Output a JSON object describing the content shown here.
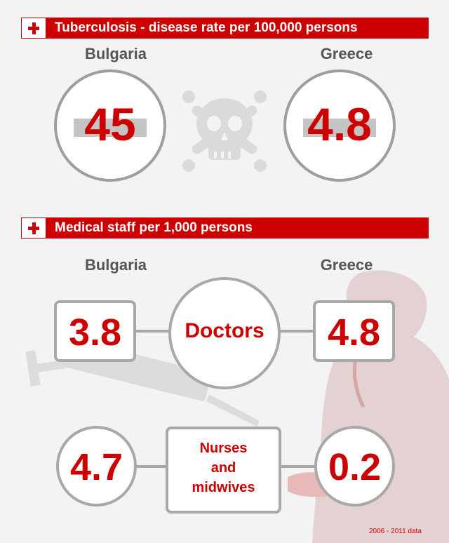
{
  "tuberculosis": {
    "title": "Tuberculosis - disease rate per 100,000 persons",
    "bulgaria_label": "Bulgaria",
    "greece_label": "Greece",
    "bulgaria_value": "45",
    "greece_value": "4.8"
  },
  "medical_staff": {
    "title": "Medical staff per 1,000 persons",
    "bulgaria_label": "Bulgaria",
    "greece_label": "Greece",
    "doctors": {
      "label": "Doctors",
      "bulgaria": "3.8",
      "greece": "4.8"
    },
    "nurses": {
      "label_lines": [
        "Nurses",
        "and",
        "midwives"
      ],
      "bulgaria": "4.7",
      "greece": "0.2"
    }
  },
  "footnote": "2006 - 2011 data",
  "colors": {
    "accent": "#cc0000",
    "grey": "#a8a8a8",
    "background": "#f3f3f3"
  },
  "icons": [
    "plus-icon",
    "skull-crossbones-icon",
    "syringe-icon",
    "doctor-silhouette-icon"
  ]
}
